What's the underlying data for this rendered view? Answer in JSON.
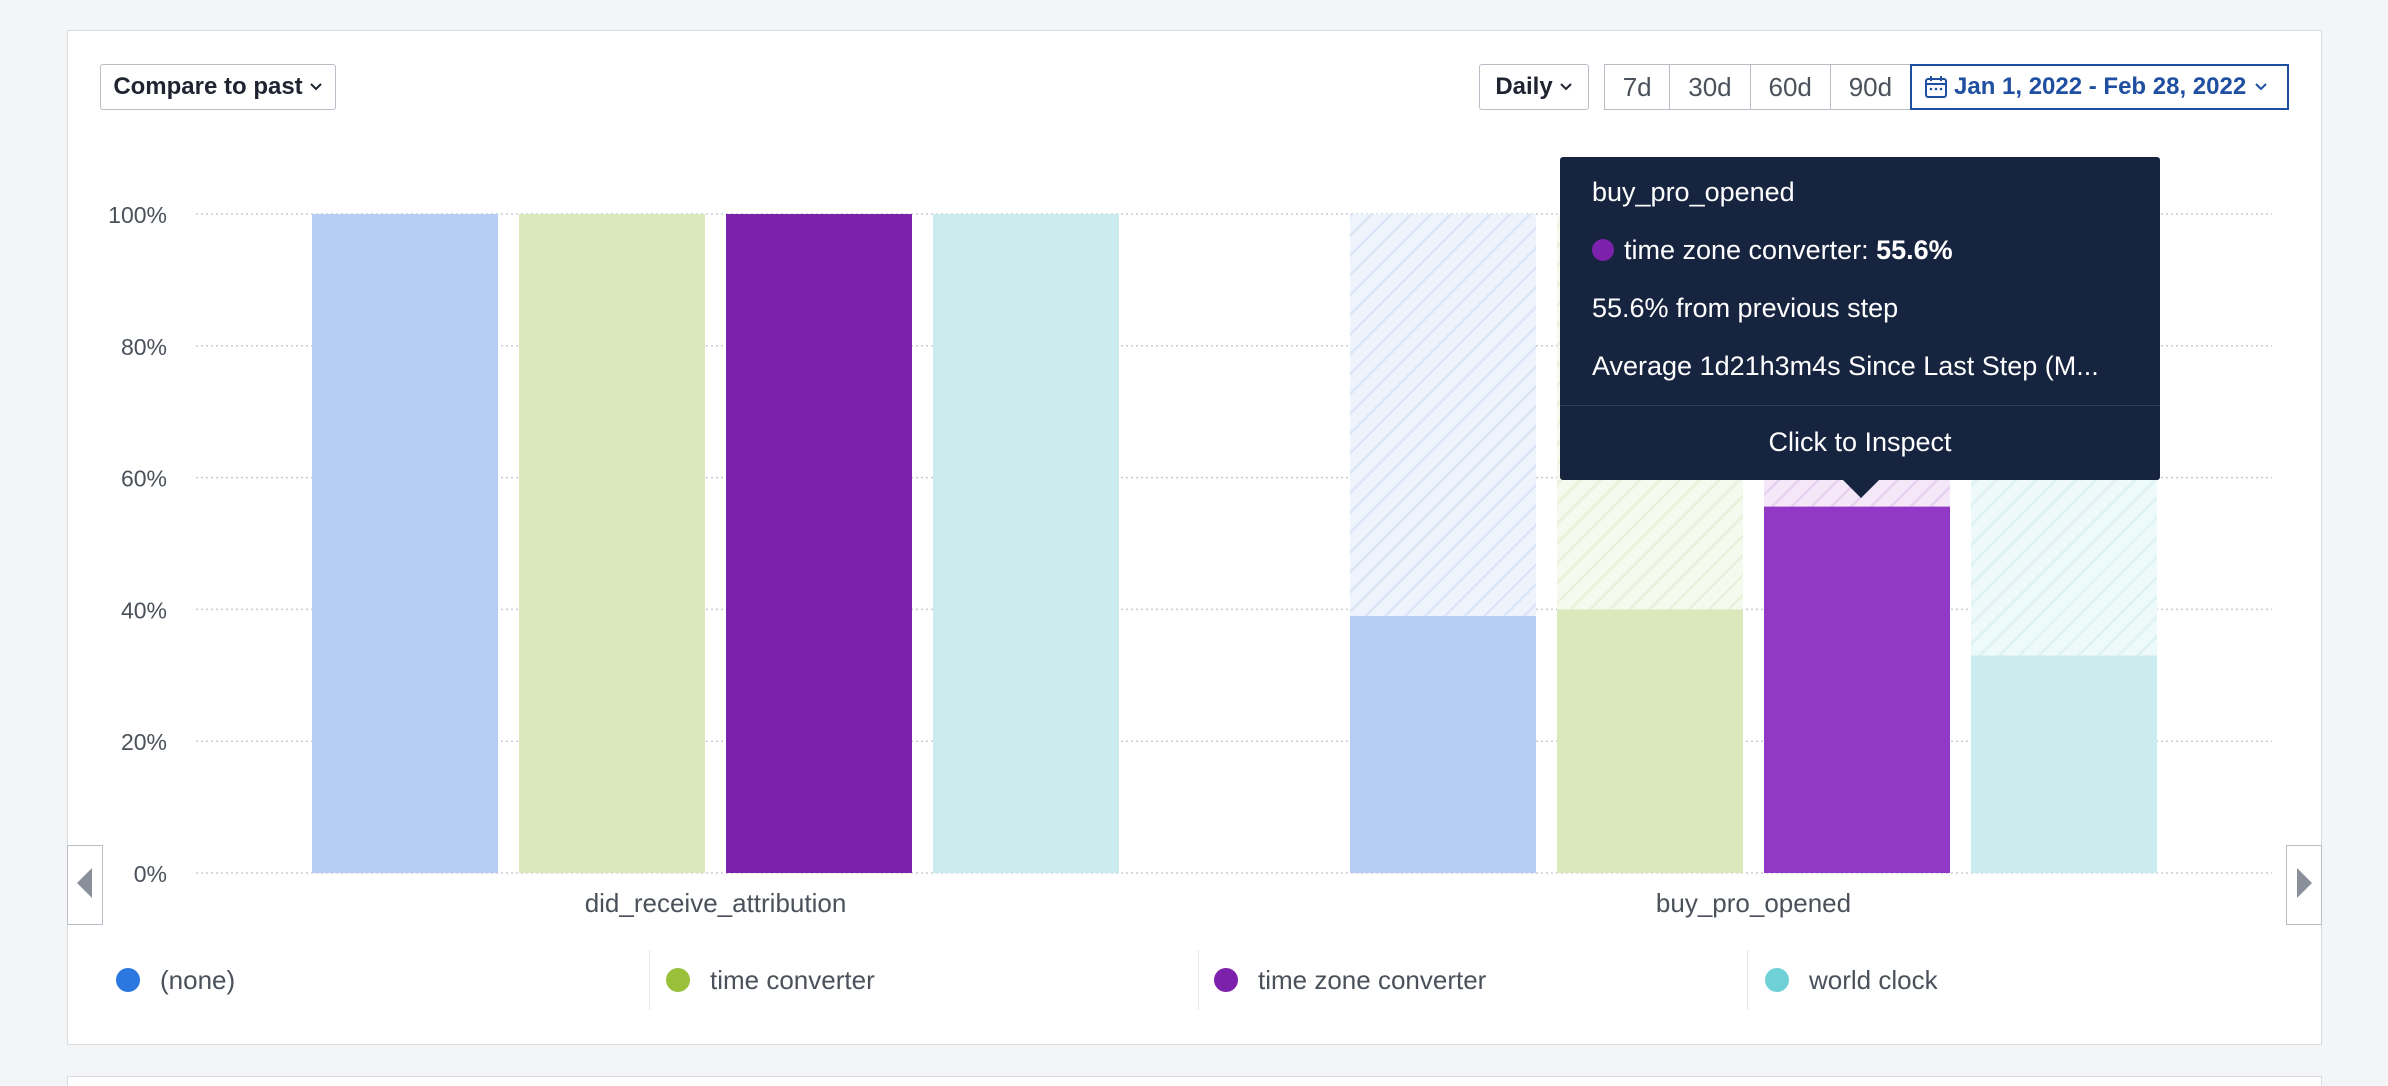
{
  "toolbar": {
    "compare_label": "Compare to past",
    "interval_label": "Daily",
    "ranges": [
      "7d",
      "30d",
      "60d",
      "90d"
    ],
    "date_range": "Jan 1, 2022 - Feb 28, 2022"
  },
  "chart_data": {
    "type": "bar",
    "categories": [
      "did_receive_attribution",
      "buy_pro_opened"
    ],
    "y_ticks": [
      "100%",
      "80%",
      "60%",
      "40%",
      "20%",
      "0%"
    ],
    "ylim": [
      0,
      100
    ],
    "unit": "%",
    "grid": true,
    "legend_position": "bottom",
    "series": [
      {
        "name": "(none)",
        "color": "#b7cdf3",
        "values": [
          100,
          39
        ]
      },
      {
        "name": "time converter",
        "color": "#dae8bb",
        "values": [
          100,
          40
        ]
      },
      {
        "name": "time zone converter",
        "color": "#7b21ab",
        "values": [
          100,
          55.6
        ]
      },
      {
        "name": "world clock",
        "color": "#caecee",
        "values": [
          100,
          33
        ]
      }
    ],
    "highlight": {
      "series": 2,
      "category": 1,
      "color": "#9238c6"
    }
  },
  "legend": [
    {
      "label": "(none)",
      "color": "#2a78e0"
    },
    {
      "label": "time converter",
      "color": "#9abf3b"
    },
    {
      "label": "time zone converter",
      "color": "#7b21ab"
    },
    {
      "label": "world clock",
      "color": "#6fd1d6"
    }
  ],
  "tooltip": {
    "step": "buy_pro_opened",
    "series_label": "time zone converter:",
    "series_value": "55.6%",
    "series_color": "#7b21ab",
    "from_previous": "55.6% from previous step",
    "average": "Average 1d21h3m4s Since Last Step (M...",
    "cta": "Click to Inspect"
  }
}
